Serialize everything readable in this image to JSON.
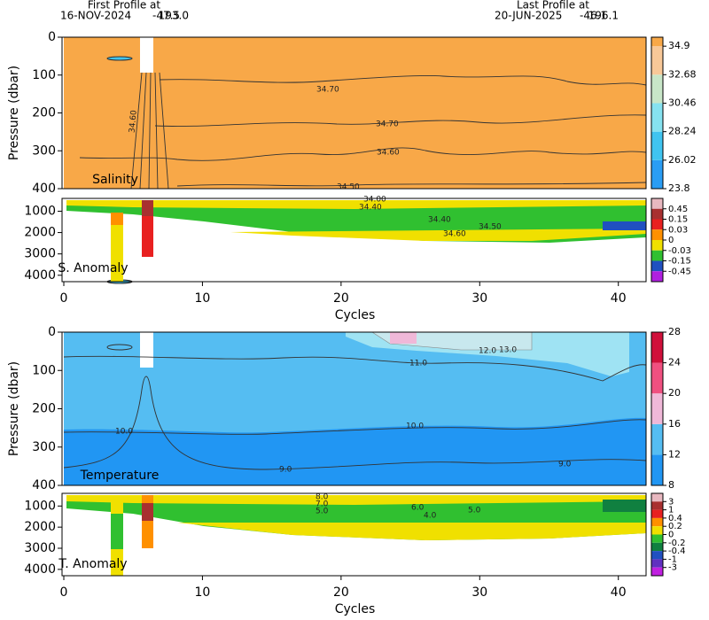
{
  "header": {
    "first_label": "First Profile at",
    "first_date": "16-NOV-2024",
    "first_lat": "-47.5",
    "first_lon": "193.0",
    "last_label": "Last Profile at",
    "last_date": "20-JUN-2025",
    "last_lat": "-46.1",
    "last_lon": "196.1"
  },
  "chart_data": [
    {
      "type": "contour",
      "label": "Salinity",
      "ylabel": "Pressure (dbar)",
      "xlim": [
        0,
        42
      ],
      "ylim": [
        0,
        400
      ],
      "yticks": [
        0,
        100,
        200,
        300,
        400
      ],
      "colorbar": {
        "scale": "linear",
        "clim": [
          23.8,
          35.6
        ],
        "ticks": [
          23.8,
          26.02,
          28.24,
          30.46,
          32.68,
          34.9
        ],
        "colors": [
          "#2a9df4",
          "#40c4f0",
          "#86e2f0",
          "#c8e6c8",
          "#f8c898",
          "#f8a848"
        ]
      },
      "contour_labels": [
        "34.70",
        "34.70",
        "34.60",
        "34.60",
        "34.50"
      ]
    },
    {
      "type": "anomaly",
      "label": "S. Anomaly",
      "xlabel": "Cycles",
      "xlim": [
        0,
        42
      ],
      "ylim": [
        400,
        4300
      ],
      "yticks": [
        1000,
        2000,
        3000,
        4000
      ],
      "xticks": [
        0,
        10,
        20,
        30,
        40
      ],
      "colorbar": {
        "scale": "categorical",
        "ticks": [
          0.45,
          0.15,
          0.03,
          0,
          -0.03,
          -0.15,
          -0.45
        ],
        "colors": [
          "#e8b8c0",
          "#a83030",
          "#e82020",
          "#ff9000",
          "#f0e000",
          "#30c030",
          "#2050c0",
          "#b020e0"
        ]
      },
      "contour_labels": [
        "34.00",
        "34.40",
        "34.40",
        "34.50",
        "34.60"
      ]
    },
    {
      "type": "contour",
      "label": "Temperature",
      "ylabel": "Pressure (dbar)",
      "xlim": [
        0,
        42
      ],
      "ylim": [
        0,
        400
      ],
      "yticks": [
        0,
        100,
        200,
        300,
        400
      ],
      "colorbar": {
        "scale": "linear",
        "clim": [
          8,
          28
        ],
        "ticks": [
          8,
          12,
          16,
          20,
          24,
          28
        ],
        "colors": [
          "#2196f3",
          "#55bdf2",
          "#f0b8d8",
          "#f05080",
          "#d0103a"
        ]
      },
      "contour_labels": [
        "13.0",
        "12.0",
        "11.0",
        "10.0",
        "10.0",
        "9.0",
        "9.0"
      ]
    },
    {
      "type": "anomaly",
      "label": "T. Anomaly",
      "xlabel": "Cycles",
      "xlim": [
        0,
        42
      ],
      "ylim": [
        400,
        4300
      ],
      "yticks": [
        1000,
        2000,
        3000,
        4000
      ],
      "xticks": [
        0,
        10,
        20,
        30,
        40
      ],
      "colorbar": {
        "scale": "categorical",
        "ticks": [
          3,
          1,
          0.4,
          0.2,
          0,
          -0.2,
          -0.4,
          -1,
          -3
        ],
        "colors": [
          "#e8b8c0",
          "#a83030",
          "#e82020",
          "#ff9000",
          "#f0e000",
          "#30c030",
          "#108040",
          "#2050c0",
          "#6030c0",
          "#c020e0"
        ]
      },
      "contour_labels": [
        "8.0",
        "7.0",
        "6.0",
        "5.0",
        "5.0",
        "4.0"
      ]
    }
  ]
}
